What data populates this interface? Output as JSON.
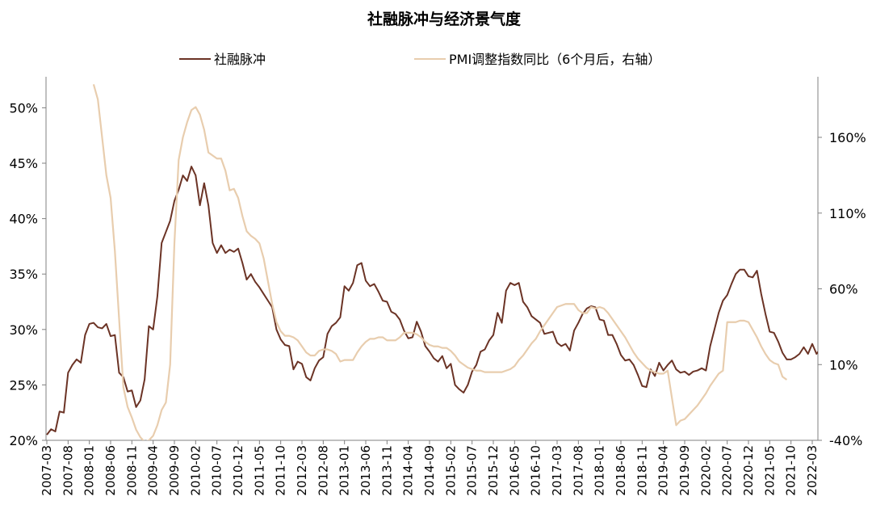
{
  "chart_data": {
    "type": "line",
    "title": "社融脉冲与经济景气度",
    "x_ticks": [
      "2007-03",
      "2007-08",
      "2008-01",
      "2008-06",
      "2008-11",
      "2009-04",
      "2009-09",
      "2010-02",
      "2010-07",
      "2010-12",
      "2011-05",
      "2011-10",
      "2012-03",
      "2012-08",
      "2013-01",
      "2013-06",
      "2013-11",
      "2014-04",
      "2014-09",
      "2015-02",
      "2015-07",
      "2015-12",
      "2016-05",
      "2016-10",
      "2017-03",
      "2017-08",
      "2018-01",
      "2018-06",
      "2018-11",
      "2019-04",
      "2019-09",
      "2020-02",
      "2020-07",
      "2020-12",
      "2021-05",
      "2021-10",
      "2022-03"
    ],
    "y_left_ticks": [
      "20%",
      "25%",
      "30%",
      "35%",
      "40%",
      "45%",
      "50%"
    ],
    "y_left_lim": [
      20,
      52.8
    ],
    "y_right_ticks": [
      "-40%",
      "10%",
      "60%",
      "110%",
      "160%"
    ],
    "y_right_lim": [
      -40,
      200
    ],
    "legend_position": "top",
    "colors": {
      "series1": "#6B3325",
      "series2": "#E8CDAE",
      "axis": "#808080",
      "text": "#000000"
    },
    "series": [
      {
        "name": "社融脉冲",
        "axis": "left",
        "color": "#6B3325",
        "x_start": "2007-03",
        "values": [
          20.5,
          21.0,
          20.8,
          22.6,
          22.5,
          26.1,
          26.8,
          27.3,
          27.0,
          29.5,
          30.5,
          30.6,
          30.2,
          30.1,
          30.5,
          29.4,
          29.5,
          26.1,
          25.7,
          24.4,
          24.5,
          23.0,
          23.6,
          25.5,
          30.3,
          30.0,
          33.0,
          37.8,
          38.8,
          39.8,
          41.6,
          42.6,
          43.9,
          43.4,
          44.7,
          43.9,
          41.2,
          43.2,
          41.2,
          37.8,
          36.9,
          37.6,
          36.9,
          37.2,
          37.0,
          37.3,
          36.0,
          34.5,
          35.0,
          34.3,
          33.8,
          33.2,
          32.6,
          32.0,
          30.0,
          29.1,
          28.6,
          28.5,
          26.4,
          27.1,
          26.9,
          25.7,
          25.4,
          26.5,
          27.2,
          27.5,
          29.6,
          30.3,
          30.6,
          31.1,
          33.9,
          33.5,
          34.2,
          35.8,
          36.0,
          34.4,
          33.9,
          34.1,
          33.4,
          32.6,
          32.5,
          31.6,
          31.4,
          30.9,
          29.9,
          29.2,
          29.3,
          30.7,
          29.8,
          28.5,
          28.0,
          27.4,
          27.1,
          27.6,
          26.5,
          26.9,
          25.0,
          24.6,
          24.3,
          25.0,
          26.2,
          26.8,
          28.0,
          28.2,
          29.0,
          29.5,
          31.5,
          30.6,
          33.5,
          34.2,
          34.0,
          34.2,
          32.5,
          32.0,
          31.2,
          30.9,
          30.6,
          29.6,
          29.7,
          29.8,
          28.8,
          28.5,
          28.7,
          28.1,
          29.9,
          30.6,
          31.4,
          31.9,
          32.1,
          32.0,
          30.9,
          30.8,
          29.5,
          29.5,
          28.7,
          27.7,
          27.2,
          27.3,
          26.8,
          25.9,
          24.9,
          24.8,
          26.4,
          25.8,
          27.0,
          26.3,
          26.8,
          27.2,
          26.4,
          26.1,
          26.2,
          25.9,
          26.2,
          26.3,
          26.5,
          26.3,
          28.5,
          30.0,
          31.5,
          32.6,
          33.1,
          34.1,
          35.0,
          35.4,
          35.4,
          34.8,
          34.7,
          35.3,
          33.2,
          31.4,
          29.8,
          29.7,
          28.9,
          27.9,
          27.3,
          27.3,
          27.5,
          27.8,
          28.4,
          27.8,
          28.7,
          27.8,
          28.3
        ]
      },
      {
        "name": "PMI调整指数同比（6个月后，右轴）",
        "axis": "right",
        "color": "#E8CDAE",
        "x_start": "2007-03",
        "values": [
          null,
          null,
          null,
          null,
          null,
          null,
          null,
          null,
          null,
          null,
          null,
          195,
          185,
          160,
          135,
          120,
          85,
          40,
          -5,
          -18,
          -25,
          -33,
          -38,
          -41,
          -40,
          -37,
          -30,
          -20,
          -15,
          10,
          90,
          145,
          160,
          170,
          178,
          180,
          175,
          165,
          150,
          148,
          146,
          146,
          138,
          125,
          126,
          120,
          108,
          98,
          95,
          93,
          90,
          80,
          65,
          50,
          38,
          32,
          29,
          29,
          28,
          26,
          22,
          18,
          16,
          16,
          19,
          20,
          20,
          19,
          17,
          12,
          13,
          13,
          13,
          18,
          22,
          25,
          27,
          27,
          28,
          28,
          26,
          26,
          26,
          28,
          31,
          31,
          31,
          30,
          28,
          25,
          23,
          22,
          22,
          21,
          21,
          19,
          16,
          12,
          10,
          8,
          7,
          6,
          6,
          5,
          5,
          5,
          5,
          5,
          6,
          7,
          9,
          13,
          16,
          20,
          24,
          27,
          32,
          36,
          40,
          44,
          48,
          49,
          50,
          50,
          50,
          46,
          44,
          44,
          48,
          47,
          48,
          47,
          44,
          40,
          36,
          32,
          28,
          23,
          18,
          14,
          11,
          8,
          6,
          5,
          4,
          4,
          6,
          -12,
          -30,
          -27,
          -26,
          -23,
          -20,
          -17,
          -13,
          -9,
          -4,
          0,
          4,
          6,
          38,
          38,
          38,
          39,
          39,
          38,
          33,
          28,
          22,
          17,
          13,
          11,
          10,
          2,
          0,
          null,
          null,
          null,
          null,
          null,
          null
        ]
      }
    ]
  }
}
